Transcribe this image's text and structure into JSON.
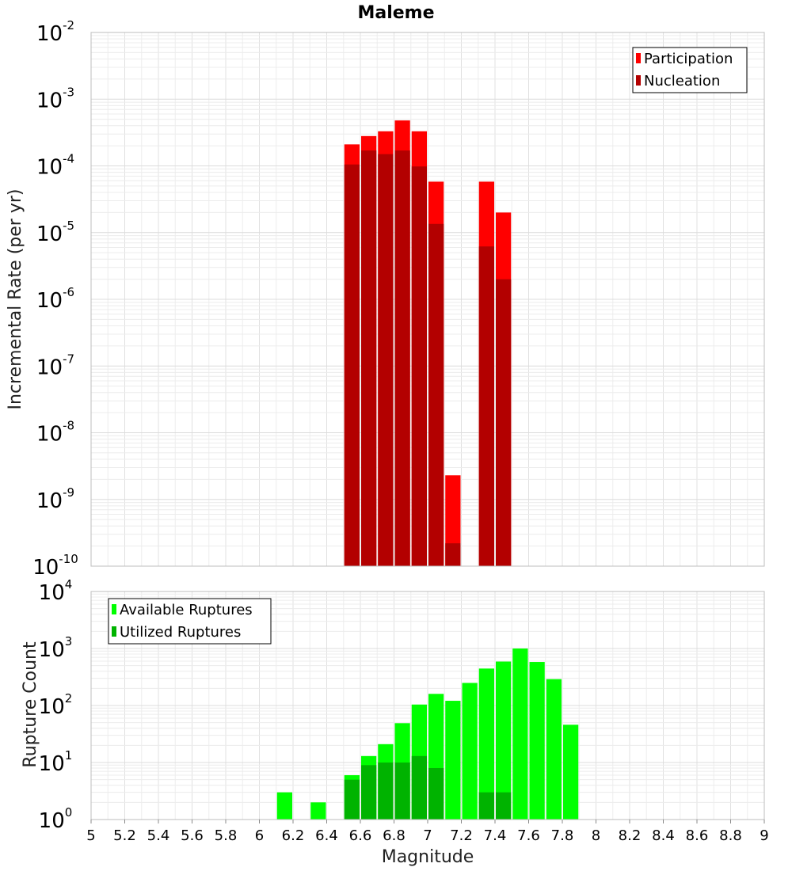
{
  "chart_data": [
    {
      "type": "bar",
      "title": "Maleme",
      "ylabel": "Incremental Rate (per yr)",
      "xlabel": "",
      "xlim": [
        5,
        9
      ],
      "ylim_exp": [
        -10,
        -2
      ],
      "yscale": "log",
      "grid": true,
      "legend_position": "top-right",
      "bin_width": 0.1,
      "series": [
        {
          "name": "Participation",
          "color": "#ff0000",
          "x": [
            6.55,
            6.65,
            6.75,
            6.85,
            6.95,
            7.05,
            7.15,
            7.35,
            7.45
          ],
          "values": [
            0.00021,
            0.00028,
            0.00033,
            0.00048,
            0.00033,
            5.8e-05,
            2.3e-09,
            5.8e-05,
            2e-05
          ]
        },
        {
          "name": "Nucleation",
          "color": "#b30000",
          "x": [
            6.55,
            6.65,
            6.75,
            6.85,
            6.95,
            7.05,
            7.15,
            7.35,
            7.45
          ],
          "values": [
            0.000105,
            0.00017,
            0.00015,
            0.00017,
            9.8e-05,
            1.35e-05,
            2.2e-10,
            6.2e-06,
            2e-06
          ]
        }
      ]
    },
    {
      "type": "bar",
      "title": "",
      "ylabel": "Rupture Count",
      "xlabel": "Magnitude",
      "xlim": [
        5,
        9
      ],
      "xticks": [
        "5",
        "5.2",
        "5.4",
        "5.6",
        "5.8",
        "6",
        "6.2",
        "6.4",
        "6.6",
        "6.8",
        "7",
        "7.2",
        "7.4",
        "7.6",
        "7.8",
        "8",
        "8.2",
        "8.4",
        "8.6",
        "8.8",
        "9"
      ],
      "ylim_exp": [
        0,
        4
      ],
      "yscale": "log",
      "grid": true,
      "legend_position": "top-left",
      "bin_width": 0.1,
      "series": [
        {
          "name": "Available Ruptures",
          "color": "#00ff00",
          "x": [
            6.15,
            6.35,
            6.45,
            6.55,
            6.65,
            6.75,
            6.85,
            6.95,
            7.05,
            7.15,
            7.25,
            7.35,
            7.45,
            7.55,
            7.65,
            7.75,
            7.85
          ],
          "values": [
            3,
            2,
            1,
            6,
            13,
            21,
            49,
            104,
            160,
            121,
            249,
            445,
            590,
            1000,
            580,
            290,
            46
          ]
        },
        {
          "name": "Utilized Ruptures",
          "color": "#00b300",
          "x": [
            6.55,
            6.65,
            6.75,
            6.85,
            6.95,
            7.05,
            7.15,
            7.35,
            7.45
          ],
          "values": [
            5,
            9,
            10,
            10,
            13,
            8,
            1,
            3,
            3
          ]
        }
      ]
    }
  ]
}
